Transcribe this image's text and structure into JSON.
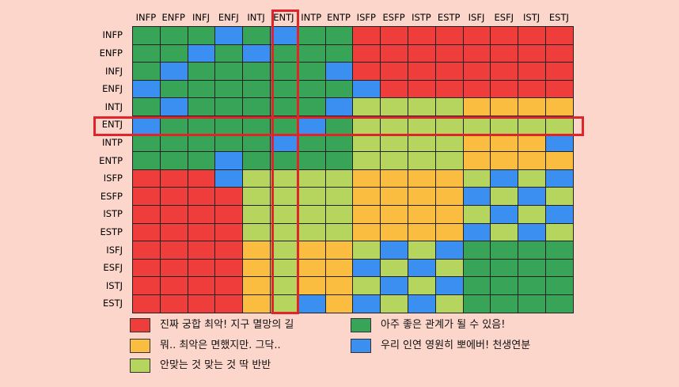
{
  "chart_data": {
    "type": "heatmap",
    "columns": [
      "INFP",
      "ENFP",
      "INFJ",
      "ENFJ",
      "INTJ",
      "ENTJ",
      "INTP",
      "ENTP",
      "ISFP",
      "ESFP",
      "ISTP",
      "ESTP",
      "ISFJ",
      "ESFJ",
      "ISTJ",
      "ESTJ"
    ],
    "rows": [
      "INFP",
      "ENFP",
      "INFJ",
      "ENFJ",
      "INTJ",
      "ENTJ",
      "INTP",
      "ENTP",
      "ISFP",
      "ESFP",
      "ISTP",
      "ESTP",
      "ISFJ",
      "ESFJ",
      "ISTJ",
      "ESTJ"
    ],
    "matrix": [
      [
        "G",
        "G",
        "G",
        "B",
        "G",
        "B",
        "G",
        "G",
        "R",
        "R",
        "R",
        "R",
        "R",
        "R",
        "R",
        "R"
      ],
      [
        "G",
        "G",
        "B",
        "G",
        "B",
        "G",
        "G",
        "G",
        "R",
        "R",
        "R",
        "R",
        "R",
        "R",
        "R",
        "R"
      ],
      [
        "G",
        "B",
        "G",
        "G",
        "G",
        "G",
        "G",
        "B",
        "R",
        "R",
        "R",
        "R",
        "R",
        "R",
        "R",
        "R"
      ],
      [
        "B",
        "G",
        "G",
        "G",
        "G",
        "G",
        "G",
        "G",
        "B",
        "R",
        "R",
        "R",
        "R",
        "R",
        "R",
        "R"
      ],
      [
        "G",
        "B",
        "G",
        "G",
        "G",
        "G",
        "G",
        "B",
        "L",
        "L",
        "L",
        "L",
        "Y",
        "Y",
        "Y",
        "Y"
      ],
      [
        "B",
        "G",
        "G",
        "G",
        "G",
        "G",
        "B",
        "G",
        "L",
        "L",
        "L",
        "L",
        "L",
        "L",
        "L",
        "L"
      ],
      [
        "G",
        "G",
        "G",
        "G",
        "G",
        "B",
        "G",
        "G",
        "L",
        "L",
        "L",
        "L",
        "Y",
        "Y",
        "Y",
        "B"
      ],
      [
        "G",
        "G",
        "G",
        "B",
        "G",
        "G",
        "G",
        "G",
        "L",
        "L",
        "L",
        "L",
        "Y",
        "Y",
        "Y",
        "Y"
      ],
      [
        "R",
        "R",
        "R",
        "B",
        "L",
        "L",
        "L",
        "L",
        "Y",
        "Y",
        "Y",
        "Y",
        "L",
        "B",
        "L",
        "B"
      ],
      [
        "R",
        "R",
        "R",
        "R",
        "L",
        "L",
        "L",
        "L",
        "Y",
        "Y",
        "Y",
        "Y",
        "B",
        "L",
        "B",
        "L"
      ],
      [
        "R",
        "R",
        "R",
        "R",
        "L",
        "L",
        "L",
        "L",
        "Y",
        "Y",
        "Y",
        "Y",
        "L",
        "B",
        "L",
        "B"
      ],
      [
        "R",
        "R",
        "R",
        "R",
        "L",
        "L",
        "L",
        "L",
        "Y",
        "Y",
        "Y",
        "Y",
        "B",
        "L",
        "B",
        "L"
      ],
      [
        "R",
        "R",
        "R",
        "R",
        "Y",
        "L",
        "Y",
        "Y",
        "L",
        "B",
        "L",
        "B",
        "G",
        "G",
        "G",
        "G"
      ],
      [
        "R",
        "R",
        "R",
        "R",
        "Y",
        "L",
        "Y",
        "Y",
        "B",
        "L",
        "B",
        "L",
        "G",
        "G",
        "G",
        "G"
      ],
      [
        "R",
        "R",
        "R",
        "R",
        "Y",
        "L",
        "Y",
        "Y",
        "L",
        "B",
        "L",
        "B",
        "G",
        "G",
        "G",
        "G"
      ],
      [
        "R",
        "R",
        "R",
        "R",
        "Y",
        "L",
        "B",
        "Y",
        "B",
        "L",
        "B",
        "L",
        "G",
        "G",
        "G",
        "G"
      ]
    ],
    "highlight_row": "ENTJ",
    "highlight_column": "ENTJ",
    "legend": [
      {
        "key": "R",
        "label": "진짜 궁합 최악! 지구 멸망의 길",
        "color": "#ee3d3a"
      },
      {
        "key": "G",
        "label": "아주 좋은 관계가 될 수 있음!",
        "color": "#37a457"
      },
      {
        "key": "Y",
        "label": "뭐.. 최악은 면했지만. 그닥..",
        "color": "#fbbd40"
      },
      {
        "key": "B",
        "label": "우리 인연 영원히 뽀에버! 천생연분",
        "color": "#3b8ff0"
      },
      {
        "key": "L",
        "label": "안맞는 것 맞는 것 딱 반반",
        "color": "#b5d55f"
      }
    ],
    "colors": {
      "R": "#ee3d3a",
      "G": "#37a457",
      "Y": "#fbbd40",
      "B": "#3b8ff0",
      "L": "#b5d55f",
      "highlight": "#e0242c",
      "background": "#fcd6cb"
    }
  }
}
